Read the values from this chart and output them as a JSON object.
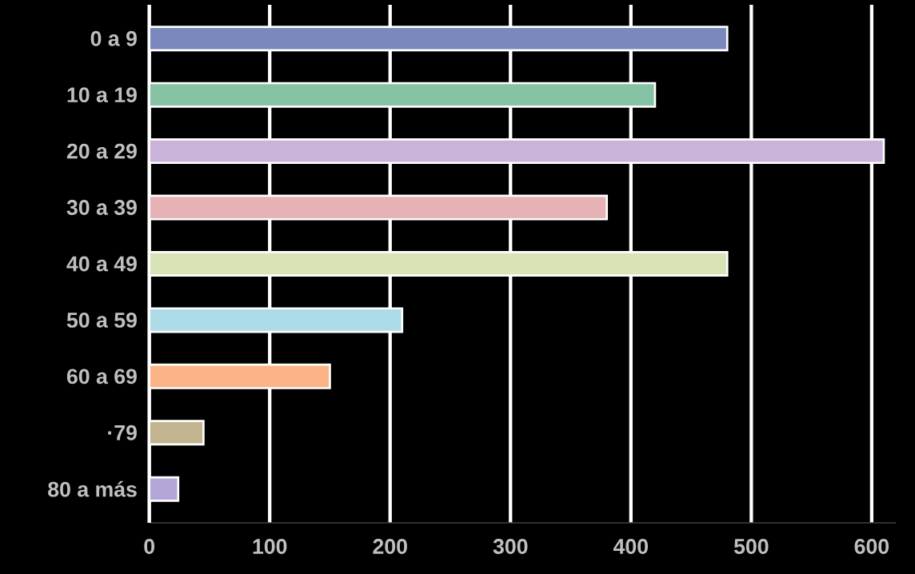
{
  "chart_data": {
    "type": "bar",
    "orientation": "horizontal",
    "categories": [
      "0 a 9",
      "10 a 19",
      "20 a 29",
      "30 a 39",
      "40 a 49",
      "50 a 59",
      "60 a 69",
      "·79",
      "80 a más"
    ],
    "values": [
      480,
      420,
      610,
      380,
      480,
      210,
      150,
      45,
      24
    ],
    "colors": [
      "#7b88bd",
      "#86c2a4",
      "#c9b3d8",
      "#e6b2b5",
      "#d8e3b8",
      "#aedbe8",
      "#fbb385",
      "#c1b48e",
      "#b3a6d6"
    ],
    "xlim": [
      0,
      620
    ],
    "xticks": [
      0,
      100,
      200,
      300,
      400,
      500,
      600
    ],
    "grid": "x"
  }
}
